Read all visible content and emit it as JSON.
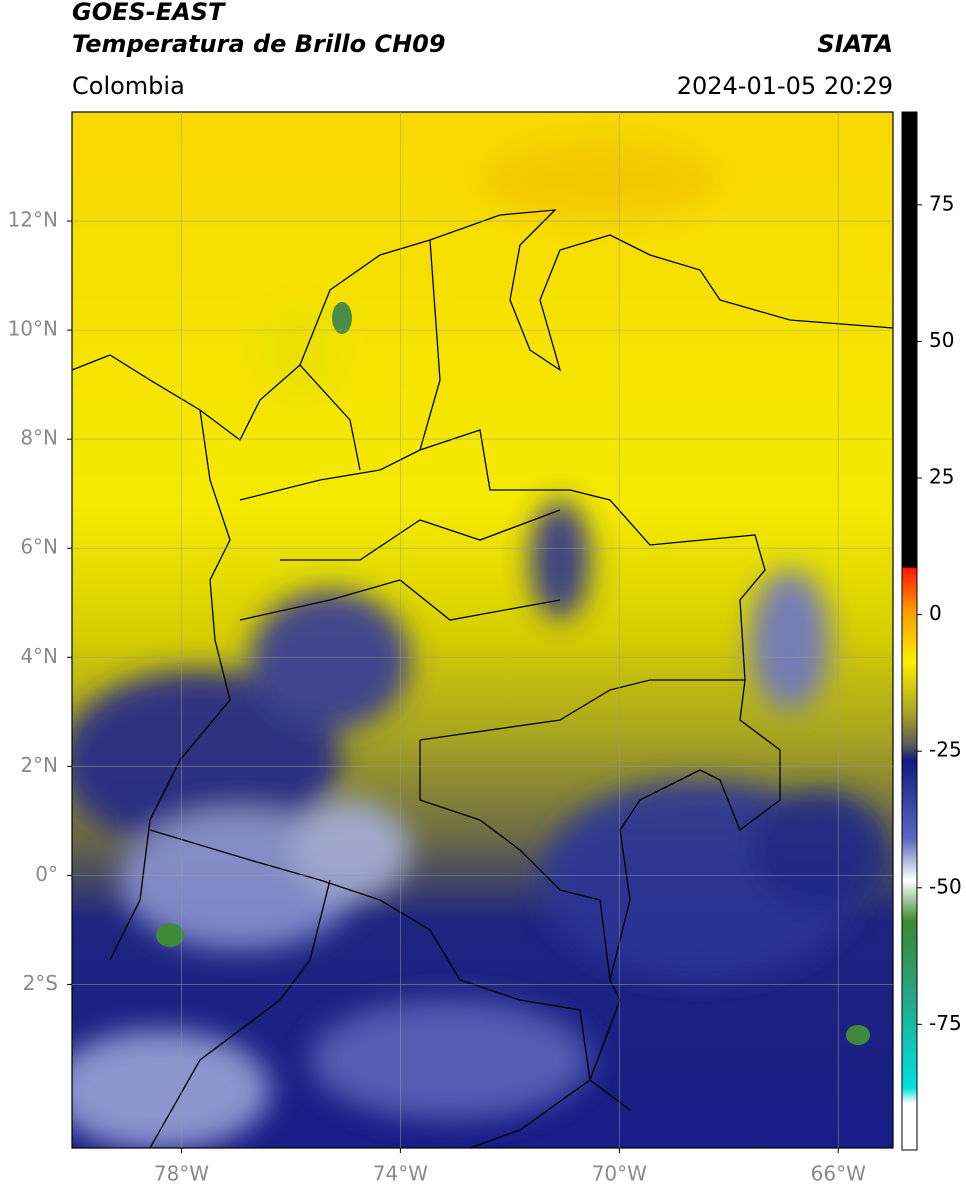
{
  "header": {
    "title": "GOES-EAST",
    "subtitle": "Temperatura de Brillo CH09",
    "region": "Colombia",
    "source": "SIATA",
    "datetime": "2024-01-05 20:29"
  },
  "map": {
    "lonlim": [
      -80,
      -65
    ],
    "latlim": [
      -5,
      14
    ],
    "lonticks": [
      {
        "value": -78,
        "label": "78°W"
      },
      {
        "value": -74,
        "label": "74°W"
      },
      {
        "value": -70,
        "label": "70°W"
      },
      {
        "value": -66,
        "label": "66°W"
      }
    ],
    "latticks": [
      {
        "value": 12,
        "label": "12°N"
      },
      {
        "value": 10,
        "label": "10°N"
      },
      {
        "value": 8,
        "label": "8°N"
      },
      {
        "value": 6,
        "label": "6°N"
      },
      {
        "value": 4,
        "label": "4°N"
      },
      {
        "value": 2,
        "label": "2°N"
      },
      {
        "value": 0,
        "label": "0°"
      },
      {
        "value": -2,
        "label": "2°S"
      }
    ]
  },
  "colorbar": {
    "lim": [
      -98,
      92
    ],
    "ticks": [
      75,
      50,
      25,
      0,
      -25,
      -50,
      -75
    ]
  }
}
